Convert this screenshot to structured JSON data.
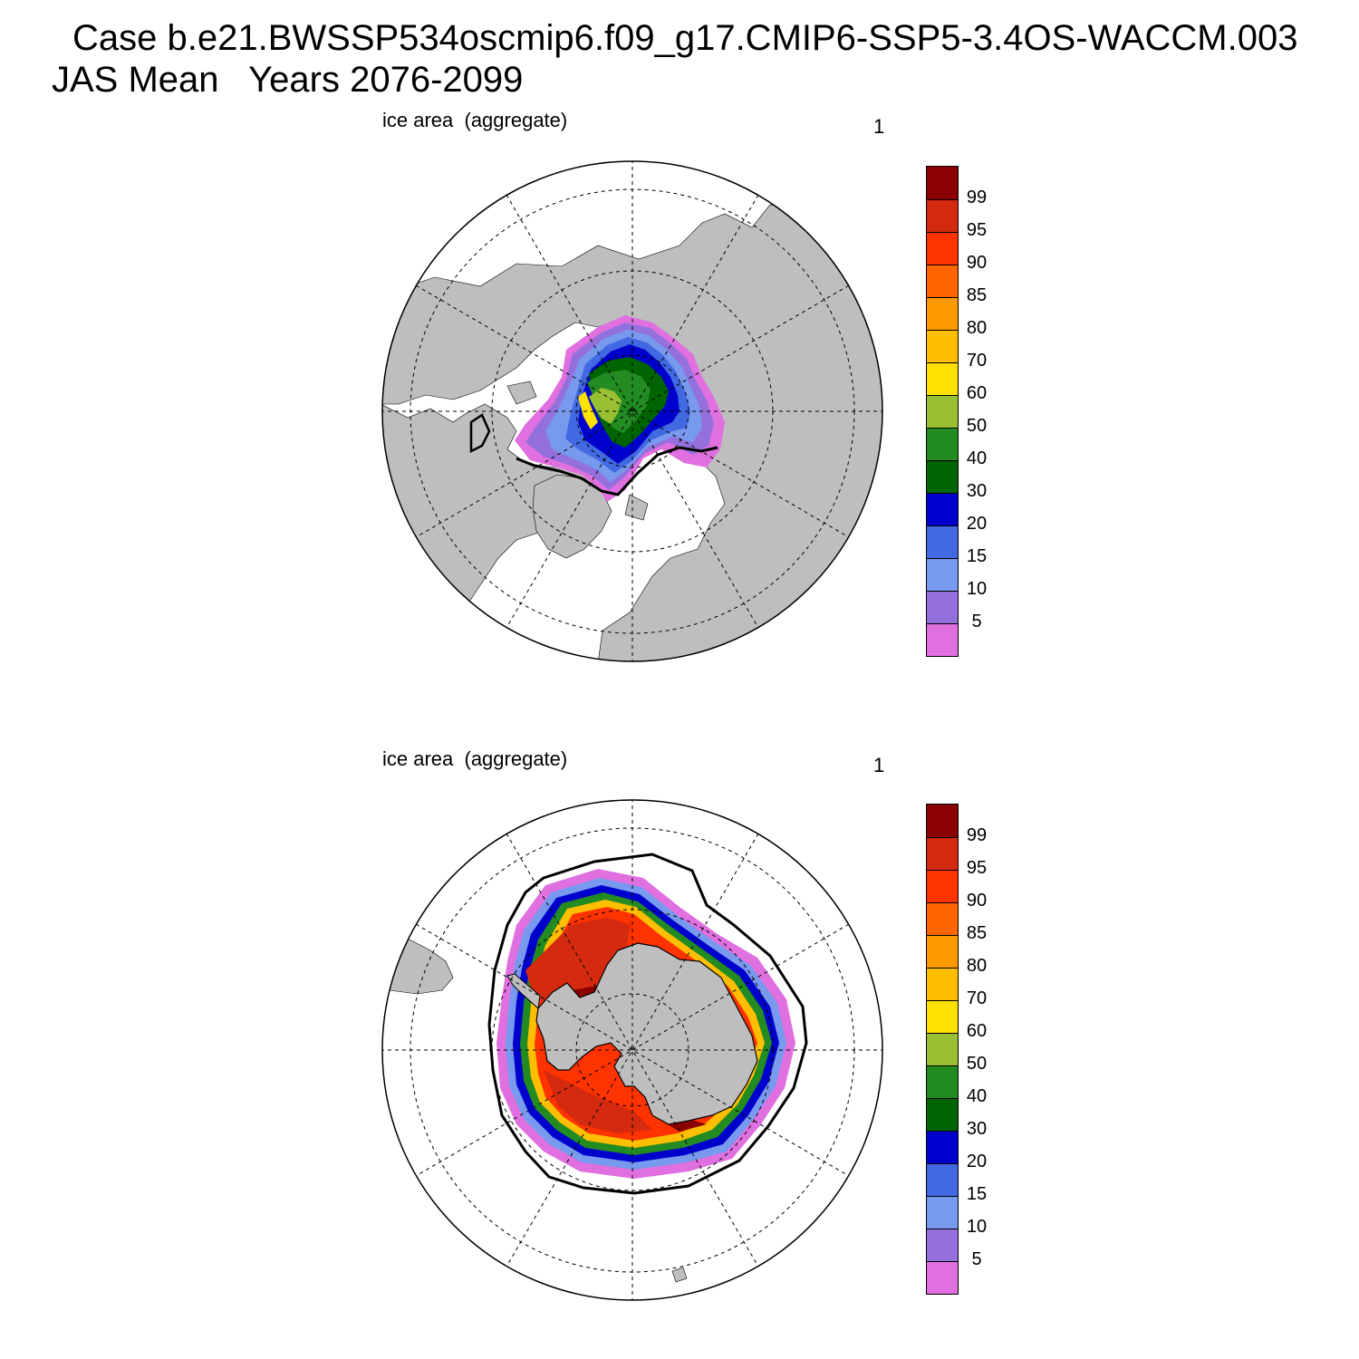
{
  "header": {
    "title_line1": "Case b.e21.BWSSP534oscmip6.f09_g17.CMIP6-SSP5-3.4OS-WACCM.003",
    "title_line2": "JAS Mean   Years 2076-2099"
  },
  "panels": [
    {
      "id": "north",
      "label": "ice area  (aggregate)",
      "number": "1",
      "hemisphere": "north-polar-stereographic"
    },
    {
      "id": "south",
      "label": "ice area  (aggregate)",
      "number": "1",
      "hemisphere": "south-polar-stereographic"
    }
  ],
  "colorbar": {
    "labels": [
      "99",
      "95",
      "90",
      "85",
      "80",
      "70",
      "60",
      "50",
      "40",
      "30",
      "20",
      "15",
      "10",
      "5"
    ],
    "colors": [
      "#8b0000",
      "#d42a10",
      "#ff3300",
      "#ff6600",
      "#ff9900",
      "#ffbf00",
      "#ffe100",
      "#99bf33",
      "#228b22",
      "#006400",
      "#0000cd",
      "#4169e1",
      "#7799ee",
      "#9370db",
      "#e070e0"
    ]
  },
  "colors": {
    "land": "#bebebe",
    "ocean": "#ffffff",
    "contour": "#000000"
  }
}
